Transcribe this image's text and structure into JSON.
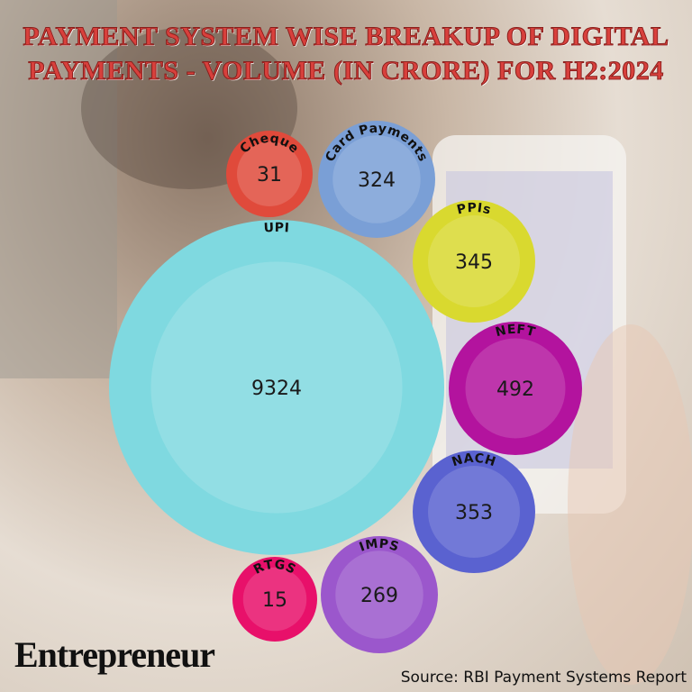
{
  "chart_data": {
    "type": "bubble",
    "title": "PAYMENT SYSTEM WISE BREAKUP OF DIGITAL PAYMENTS - VOLUME (IN CRORE) FOR H2:2024",
    "categories": [
      "Cheque",
      "Card Payments",
      "PPIs",
      "UPI",
      "NEFT",
      "NACH",
      "IMPS",
      "RTGS"
    ],
    "values": [
      31,
      324,
      345,
      9324,
      492,
      353,
      269,
      15
    ],
    "colors": [
      "#e04a3b",
      "#7a9fd6",
      "#d9d92f",
      "#7fd9e0",
      "#b3139e",
      "#5a62d0",
      "#9b57cc",
      "#e8106a"
    ],
    "brand": "Entrepreneur",
    "source": "Source: RBI Payment Systems Report"
  }
}
